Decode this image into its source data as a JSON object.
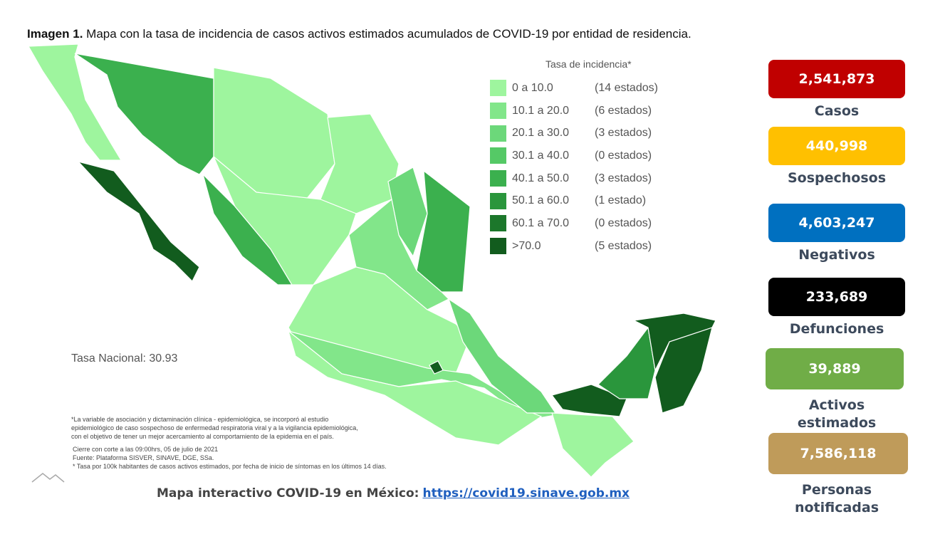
{
  "title": {
    "bold": "Imagen 1.",
    "text": "Mapa con la tasa de incidencia de casos activos estimados acumulados de COVID-19 por entidad de residencia."
  },
  "legend": {
    "title": "Tasa de incidencia*",
    "items": [
      {
        "range": "0 a 10.0",
        "count": "(14 estados)",
        "color": "#9ef59e"
      },
      {
        "range": "10.1 a 20.0",
        "count": "(6 estados)",
        "color": "#82e68a"
      },
      {
        "range": "20.1 a 30.0",
        "count": "(3 estados)",
        "color": "#6cd87a"
      },
      {
        "range": "30.1 a 40.0",
        "count": "(0 estados)",
        "color": "#55c966"
      },
      {
        "range": "40.1 a 50.0",
        "count": "(3 estados)",
        "color": "#3bb04e"
      },
      {
        "range": "50.1 a 60.0",
        "count": "(1 estado)",
        "color": "#2a963c"
      },
      {
        "range": "60.1 a 70.0",
        "count": "(0 estados)",
        "color": "#1c772b"
      },
      {
        "range": ">70.0",
        "count": "(5 estados)",
        "color": "#125c1e"
      }
    ]
  },
  "national_rate": "Tasa Nacional: 30.93",
  "notes": [
    "*La variable de asociación y dictaminación clínica - epidemiológica, se incorporó al estudio",
    "epidemiológico de caso sospechoso de enfermedad respiratoria viral y a la vigilancia epidemiológica,",
    "con el objetivo de tener un mejor acercamiento al comportamiento de la epidemia en el país.",
    "Cierre con corte a las 09:00hrs, 05 de julio de 2021",
    "Fuente: Plataforma SISVER, SINAVE, DGE, SSa.",
    "* Tasa por 100k habitantes de casos activos estimados, por fecha de inicio de síntomas en los últimos 14 días."
  ],
  "link": {
    "label": "Mapa interactivo COVID-19 en México:",
    "url": "https://covid19.sinave.gob.mx"
  },
  "stats": [
    {
      "value": "2,541,873",
      "label": [
        "Casos"
      ],
      "color": "#c00000"
    },
    {
      "value": "440,998",
      "label": [
        "Sospechosos"
      ],
      "color": "#ffc000"
    },
    {
      "value": "4,603,247",
      "label": [
        "Negativos"
      ],
      "color": "#0070c0"
    },
    {
      "value": "233,689",
      "label": [
        "Defunciones"
      ],
      "color": "#000000"
    },
    {
      "value": "39,889",
      "label": [
        "Activos",
        "estimados"
      ],
      "color": "#70ad47"
    },
    {
      "value": "7,586,118",
      "label": [
        "Personas",
        "notificadas"
      ],
      "color": "#bf9b5a"
    }
  ]
}
